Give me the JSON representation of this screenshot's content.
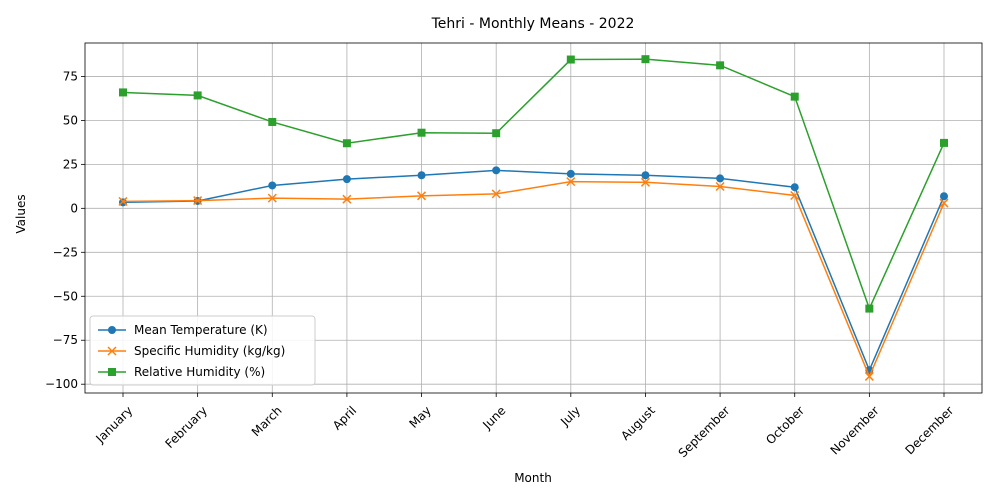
{
  "chart_data": {
    "type": "line",
    "title": "Tehri - Monthly Means - 2022",
    "xlabel": "Month",
    "ylabel": "Values",
    "categories": [
      "January",
      "February",
      "March",
      "April",
      "May",
      "June",
      "July",
      "August",
      "September",
      "October",
      "November",
      "December"
    ],
    "ylim": [
      -105,
      94
    ],
    "yticks": [
      -100,
      -75,
      -50,
      -25,
      0,
      25,
      50,
      75
    ],
    "grid": true,
    "legend_position": "lower-left",
    "series": [
      {
        "name": "Mean Temperature (K)",
        "color": "#1f77b4",
        "marker": "circle",
        "values": [
          3.4,
          4.2,
          13.0,
          16.6,
          18.8,
          21.6,
          19.6,
          18.8,
          17.0,
          12.0,
          -92.0,
          6.9
        ]
      },
      {
        "name": "Specific Humidity (kg/kg)",
        "color": "#ff7f0e",
        "marker": "x",
        "values": [
          3.9,
          4.4,
          5.8,
          5.2,
          7.1,
          8.2,
          15.2,
          14.8,
          12.4,
          7.3,
          -95.6,
          3.0
        ]
      },
      {
        "name": "Relative Humidity (%)",
        "color": "#2ca02c",
        "marker": "square",
        "values": [
          65.9,
          64.2,
          49.1,
          37.0,
          43.0,
          42.7,
          84.6,
          84.8,
          81.3,
          63.5,
          -57.0,
          37.2
        ]
      }
    ]
  }
}
